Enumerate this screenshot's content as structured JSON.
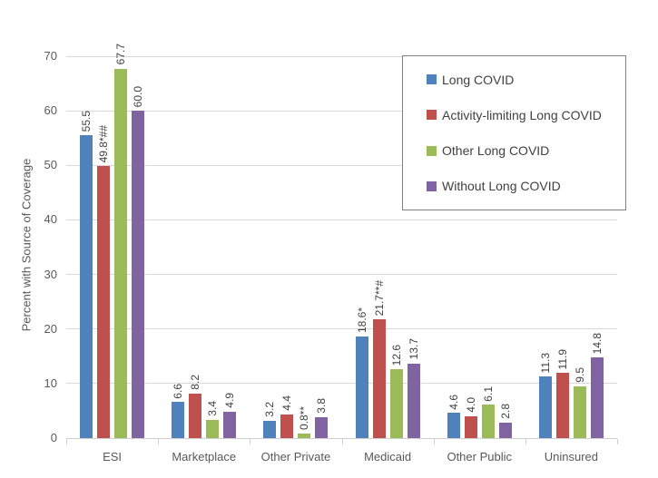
{
  "chart_data": {
    "type": "bar",
    "title": "",
    "xlabel": "",
    "ylabel": "Percent with Source of Coverage",
    "ylim": [
      0,
      70
    ],
    "yticks": [
      0,
      10,
      20,
      30,
      40,
      50,
      60,
      70
    ],
    "grid": true,
    "legend_position": "top-right-box",
    "categories": [
      "ESI",
      "Marketplace",
      "Other Private",
      "Medicaid",
      "Other Public",
      "Uninsured"
    ],
    "series": [
      {
        "name": "Long COVID",
        "color": "#4F81BD",
        "values": [
          55.5,
          6.6,
          3.2,
          18.6,
          4.6,
          11.3
        ],
        "labels": [
          "55.5",
          "6.6",
          "3.2",
          "18.6*",
          "4.6",
          "11.3"
        ]
      },
      {
        "name": "Activity-limiting Long COVID",
        "color": "#C0504D",
        "values": [
          49.8,
          8.2,
          4.4,
          21.7,
          4.0,
          11.9
        ],
        "labels": [
          "49.8*##",
          "8.2",
          "4.4",
          "21.7**#",
          "4.0",
          "11.9"
        ]
      },
      {
        "name": "Other Long COVID",
        "color": "#9BBB59",
        "values": [
          67.7,
          3.4,
          0.8,
          12.6,
          6.1,
          9.5
        ],
        "labels": [
          "67.7",
          "3.4",
          "0.8**",
          "12.6",
          "6.1",
          "9.5"
        ]
      },
      {
        "name": "Without Long COVID",
        "color": "#8064A2",
        "values": [
          60.0,
          4.9,
          3.8,
          13.7,
          2.8,
          14.8
        ],
        "labels": [
          "60.0",
          "4.9",
          "3.8",
          "13.7",
          "2.8",
          "14.8"
        ]
      }
    ]
  }
}
